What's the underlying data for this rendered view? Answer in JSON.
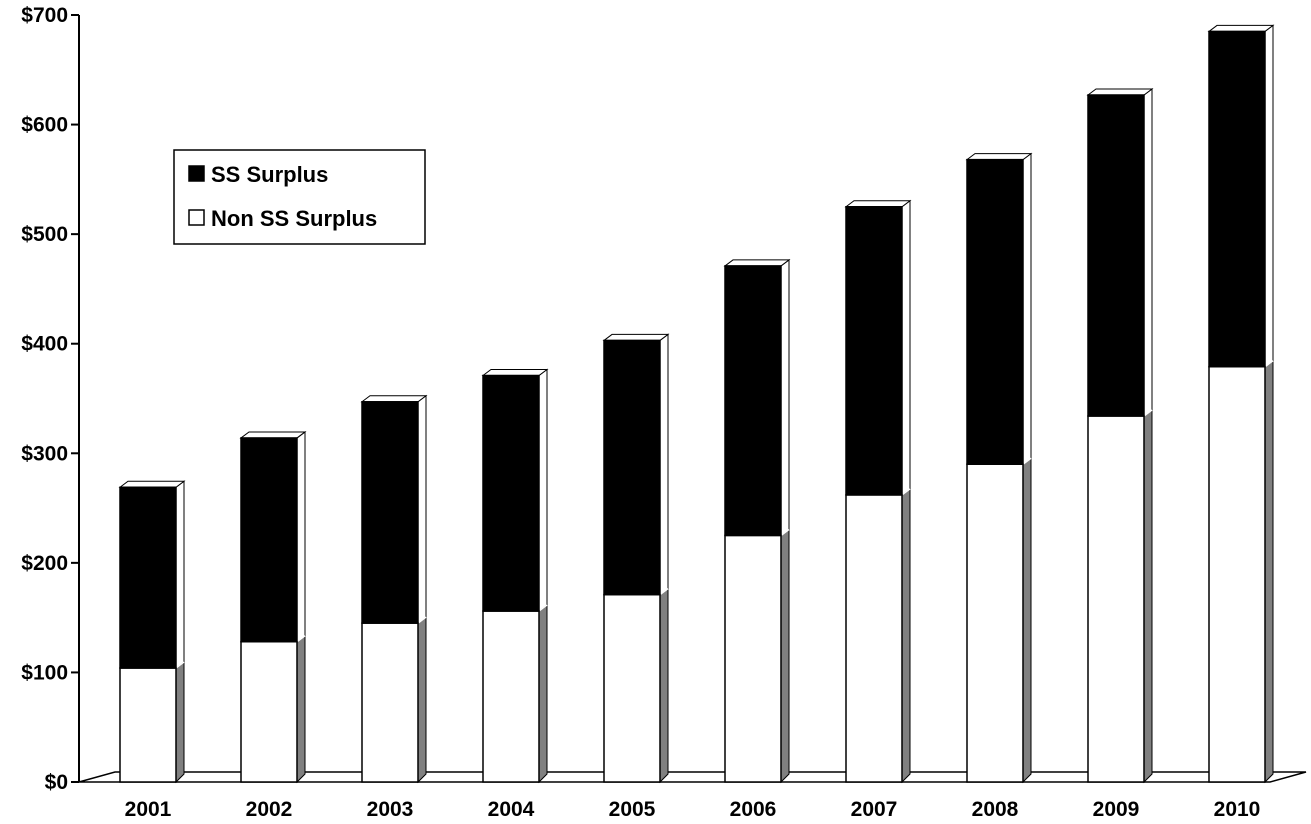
{
  "chart_data": {
    "type": "bar",
    "stacked": true,
    "style": "3d",
    "title": "",
    "xlabel": "",
    "ylabel": "",
    "categories": [
      "2001",
      "2002",
      "2003",
      "2004",
      "2005",
      "2006",
      "2007",
      "2008",
      "2009",
      "2010"
    ],
    "series": [
      {
        "name": "Non SS Surplus",
        "color": "#ffffff",
        "values": [
          104,
          128,
          145,
          156,
          171,
          225,
          262,
          290,
          334,
          379
        ]
      },
      {
        "name": "SS Surplus",
        "color": "#000000",
        "values": [
          165,
          186,
          202,
          215,
          232,
          246,
          263,
          278,
          293,
          306
        ]
      }
    ],
    "ylim": [
      0,
      700
    ],
    "yticks": [
      0,
      100,
      200,
      300,
      400,
      500,
      600,
      700
    ],
    "ytick_labels": [
      "$0",
      "$100",
      "$200",
      "$300",
      "$400",
      "$500",
      "$600",
      "$700"
    ],
    "grid": false,
    "legend": {
      "placement": "top-left",
      "entries": [
        {
          "label": "SS Surplus",
          "color": "#000000"
        },
        {
          "label": "Non SS Surplus",
          "color": "#ffffff"
        }
      ]
    }
  }
}
